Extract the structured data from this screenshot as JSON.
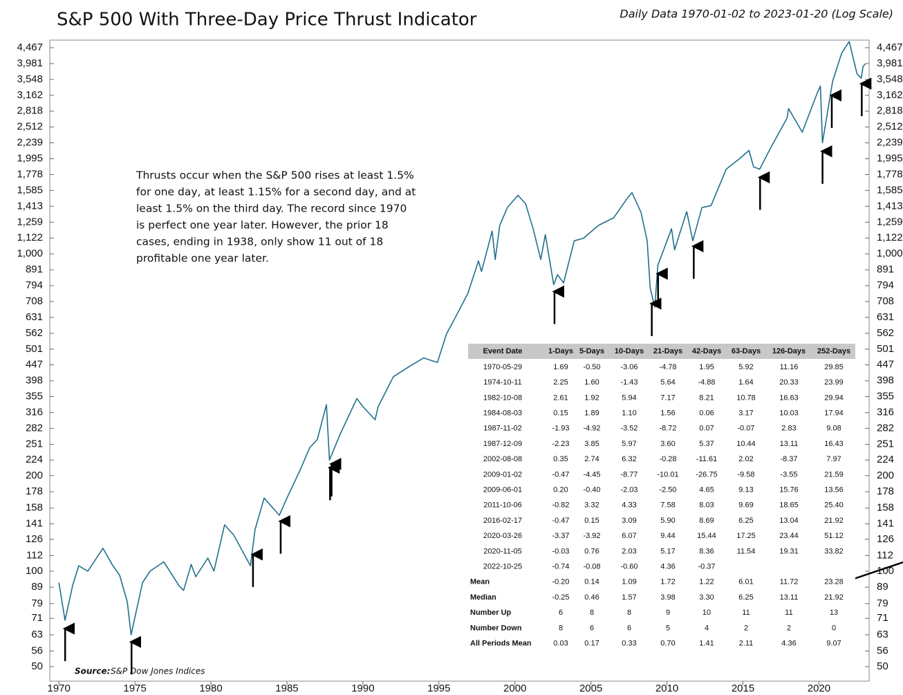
{
  "chart_data": {
    "type": "line",
    "title": "S&P 500 With Three-Day Price Thrust Indicator",
    "subtitle": "Daily Data 1970-01-02 to 2023-01-20 (Log Scale)",
    "note": [
      "Thrusts occur when the S&P 500 rises at least 1.5%",
      "for one day, at least 1.15% for a second day, and at",
      "least 1.5% on the third  day. The record since 1970",
      "is perfect one year later. However, the prior 18",
      "cases, ending  in 1938, only show 11 out of 18",
      "profitable one year later."
    ],
    "source_label": "Source:",
    "source": "S&P Dow Jones Indices",
    "log_scale": true,
    "color": "#1f6f8b",
    "x": [
      1970.0,
      1970.4,
      1970.9,
      1971.3,
      1971.9,
      1972.9,
      1973.5,
      1974.0,
      1974.5,
      1974.75,
      1975.5,
      1976.0,
      1976.9,
      1977.9,
      1978.2,
      1978.7,
      1979.0,
      1979.8,
      1980.2,
      1980.9,
      1981.5,
      1982.6,
      1982.9,
      1983.5,
      1984.5,
      1985.0,
      1985.9,
      1986.5,
      1987.0,
      1987.6,
      1987.8,
      1988.5,
      1989.6,
      1990.0,
      1990.8,
      1991.0,
      1992.0,
      1993.0,
      1994.0,
      1994.9,
      1995.5,
      1996.0,
      1996.9,
      1997.6,
      1997.8,
      1998.5,
      1998.7,
      1999.0,
      1999.5,
      2000.2,
      2000.7,
      2001.2,
      2001.7,
      2002.0,
      2002.55,
      2002.8,
      2003.2,
      2003.9,
      2004.5,
      2005.5,
      2006.5,
      2007.4,
      2007.7,
      2008.3,
      2008.7,
      2008.9,
      2009.2,
      2009.4,
      2010.3,
      2010.5,
      2011.3,
      2011.7,
      2012.3,
      2012.9,
      2013.9,
      2014.8,
      2015.4,
      2015.7,
      2016.1,
      2016.8,
      2017.9,
      2018.0,
      2018.9,
      2019.9,
      2020.1,
      2020.23,
      2020.9,
      2021.5,
      2021.99,
      2022.5,
      2022.78,
      2022.9,
      2023.05
    ],
    "values": [
      92,
      70,
      90,
      104,
      100,
      118,
      105,
      97,
      80,
      63,
      92,
      100,
      107,
      90,
      87,
      105,
      96,
      110,
      100,
      140,
      130,
      104,
      135,
      170,
      150,
      170,
      210,
      245,
      260,
      335,
      224,
      270,
      350,
      330,
      300,
      330,
      410,
      440,
      470,
      455,
      560,
      620,
      750,
      950,
      880,
      1180,
      960,
      1230,
      1400,
      1530,
      1440,
      1200,
      960,
      1150,
      800,
      860,
      810,
      1100,
      1120,
      1230,
      1300,
      1500,
      1560,
      1350,
      1100,
      780,
      680,
      920,
      1200,
      1030,
      1360,
      1100,
      1400,
      1420,
      1850,
      2000,
      2120,
      1880,
      1850,
      2150,
      2680,
      2870,
      2420,
      3230,
      3380,
      2240,
      3500,
      4300,
      4670,
      3700,
      3580,
      3900,
      3970
    ],
    "xlim": [
      1969.4,
      2023.3
    ],
    "xticks": [
      1970,
      1975,
      1980,
      1985,
      1990,
      1995,
      2000,
      2005,
      2010,
      2015,
      2020
    ],
    "ylim": [
      45,
      4720
    ],
    "yticks": [
      50,
      56,
      63,
      71,
      79,
      89,
      100,
      112,
      126,
      141,
      158,
      178,
      200,
      224,
      251,
      282,
      316,
      355,
      398,
      447,
      501,
      562,
      631,
      708,
      794,
      891,
      {
        "value": 1000,
        "label": "1,000"
      },
      {
        "value": 1122,
        "label": "1,122"
      },
      {
        "value": 1259,
        "label": "1,259"
      },
      {
        "value": 1413,
        "label": "1,413"
      },
      {
        "value": 1585,
        "label": "1,585"
      },
      {
        "value": 1778,
        "label": "1,778"
      },
      {
        "value": 1995,
        "label": "1,995"
      },
      {
        "value": 2239,
        "label": "2,239"
      },
      {
        "value": 2512,
        "label": "2,512"
      },
      {
        "value": 2818,
        "label": "2,818"
      },
      {
        "value": 3162,
        "label": "3,162"
      },
      {
        "value": 3548,
        "label": "3,548"
      },
      {
        "value": 3981,
        "label": "3,981"
      },
      {
        "value": 4467,
        "label": "4,467"
      }
    ]
  },
  "table": {
    "header": [
      "Event Date",
      "1-Days",
      "5-Days",
      "10-Days",
      "21-Days",
      "42-Days",
      "63-Days",
      "126-Days",
      "252-Days"
    ],
    "events": [
      [
        "1970-05-29",
        "1.69",
        "-0.50",
        "-3.06",
        "-4.78",
        "1.95",
        "5.92",
        "11.16",
        "29.85"
      ],
      [
        "1974-10-11",
        "2.25",
        "1.60",
        "-1.43",
        "5.64",
        "-4.88",
        "1.64",
        "20.33",
        "23.99"
      ],
      [
        "1982-10-08",
        "2.61",
        "1.92",
        "5.94",
        "7.17",
        "8.21",
        "10.78",
        "16.63",
        "29.94"
      ],
      [
        "1984-08-03",
        "0.15",
        "1.89",
        "1.10",
        "1.56",
        "0.06",
        "3.17",
        "10.03",
        "17.94"
      ],
      [
        "1987-11-02",
        "-1.93",
        "-4.92",
        "-3.52",
        "-8.72",
        "0.07",
        "-0.07",
        "2.83",
        "9.08"
      ],
      [
        "1987-12-09",
        "-2.23",
        "3.85",
        "5.97",
        "3.60",
        "5.37",
        "10.44",
        "13.11",
        "16.43"
      ],
      [
        "2002-08-08",
        "0.35",
        "2.74",
        "6.32",
        "-0.28",
        "-11.61",
        "2.02",
        "-8.37",
        "7.97"
      ],
      [
        "2009-01-02",
        "-0.47",
        "-4.45",
        "-8.77",
        "-10.01",
        "-26.75",
        "-9.58",
        "-3.55",
        "21.59"
      ],
      [
        "2009-06-01",
        "0.20",
        "-0.40",
        "-2.03",
        "-2.50",
        "4.65",
        "9.13",
        "15.76",
        "13.56"
      ],
      [
        "2011-10-06",
        "-0.82",
        "3.32",
        "4.33",
        "7.58",
        "8.03",
        "9.69",
        "18.65",
        "25.40"
      ],
      [
        "2016-02-17",
        "-0.47",
        "0.15",
        "3.09",
        "5.90",
        "8.69",
        "6.25",
        "13.04",
        "21.92"
      ],
      [
        "2020-03-26",
        "-3.37",
        "-3.92",
        "6.07",
        "9.44",
        "15.44",
        "17.25",
        "23.44",
        "51.12"
      ],
      [
        "2020-11-05",
        "-0.03",
        "0.76",
        "2.03",
        "5.17",
        "8.36",
        "11.54",
        "19.31",
        "33.82"
      ],
      [
        "2022-10-25",
        "-0.74",
        "-0.08",
        "-0.60",
        "4.36",
        "-0.37"
      ]
    ],
    "summary": [
      [
        "Mean",
        "-0.20",
        "0.14",
        "1.09",
        "1.72",
        "1.22",
        "6.01",
        "11.72",
        "23.28"
      ],
      [
        "Median",
        "-0.25",
        "0.46",
        "1.57",
        "3.98",
        "3.30",
        "6.25",
        "13.11",
        "21.92"
      ],
      [
        "Number Up",
        "6",
        "8",
        "8",
        "9",
        "10",
        "11",
        "11",
        "13"
      ],
      [
        "Number Down",
        "8",
        "6",
        "6",
        "5",
        "4",
        "2",
        "2",
        "0"
      ],
      [
        "All Periods Mean",
        "0.03",
        "0.17",
        "0.33",
        "0.70",
        "1.41",
        "2.11",
        "4.36",
        "9.07"
      ]
    ]
  }
}
